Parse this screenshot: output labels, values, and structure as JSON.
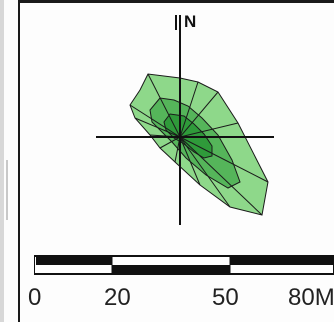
{
  "map": {
    "north_label": "N",
    "scale": {
      "labels": [
        "0",
        "20",
        "50",
        "80M"
      ]
    },
    "colors": {
      "outer_fill": "#8ed88a",
      "mid_fill": "#55b55a",
      "inner_fill": "#2f9a3a",
      "stroke": "#1a1a1a",
      "frame": "#1a1a1a"
    }
  }
}
